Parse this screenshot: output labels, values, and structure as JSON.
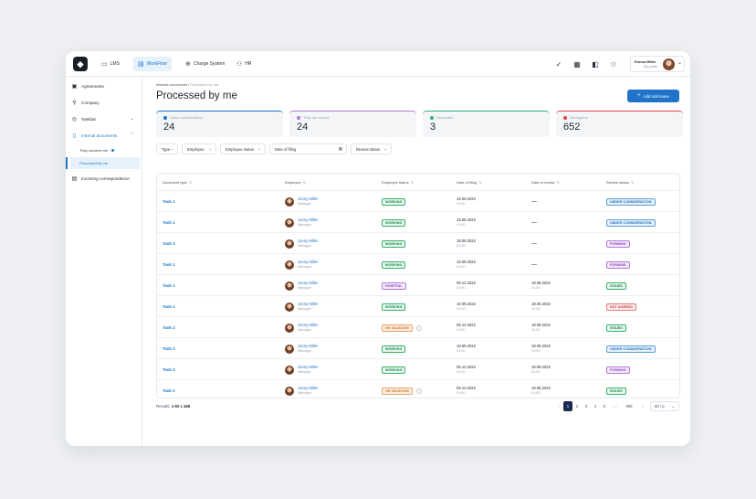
{
  "topbar": {
    "tabs": [
      {
        "label": "LMS",
        "icon": "monitor-icon"
      },
      {
        "label": "WorkFlow",
        "icon": "workflow-icon"
      },
      {
        "label": "Charge System",
        "icon": "charge-icon"
      },
      {
        "label": "HR",
        "icon": "people-icon"
      }
    ],
    "user": {
      "name": "Emma Miller",
      "subtitle": "My profile"
    }
  },
  "sidebar": {
    "items": [
      {
        "label": "Agreements",
        "icon": "agreement-icon"
      },
      {
        "label": "Company",
        "icon": "company-icon"
      },
      {
        "label": "Taskbar",
        "icon": "taskbar-icon"
      },
      {
        "label": "Internal documents",
        "icon": "document-icon"
      },
      {
        "label": "Incoming correspondence",
        "icon": "inbox-icon"
      }
    ],
    "subitems": [
      {
        "label": "They concern me"
      },
      {
        "label": "Processed by me"
      }
    ]
  },
  "breadcrumb": {
    "parent": "Internal documents",
    "separator": "/",
    "current": "Processed by me"
  },
  "page_title": "Processed by me",
  "add_button_label": "Add sick leave",
  "stats": [
    {
      "label": "Under consideration",
      "value": "24",
      "color": "#1f74c9"
    },
    {
      "label": "They are issued",
      "value": "24",
      "color": "#b27ad9"
    },
    {
      "label": "Decorated",
      "value": "3",
      "color": "#2fb37a"
    },
    {
      "label": "Not agreed",
      "value": "652",
      "color": "#e0464b"
    }
  ],
  "filters": [
    {
      "label": "Type"
    },
    {
      "label": "Employee"
    },
    {
      "label": "Employee status"
    },
    {
      "label": "Date of filing"
    },
    {
      "label": "Review status"
    }
  ],
  "table": {
    "headers": [
      "Document type",
      "Employee",
      "Employee status",
      "Date of filing",
      "Date of review",
      "Review status"
    ],
    "rows": [
      {
        "doc": "Task 1",
        "name": "Jonny Miller",
        "role": "Manager",
        "status": "WORKING",
        "status_kind": "working",
        "filed_date": "18.09.2022",
        "filed_time": "01:00",
        "review_date": "—",
        "review_time": "",
        "review": "UNDER CONSIDERATION",
        "review_kind": "consider"
      },
      {
        "doc": "Task 1",
        "name": "Jonny Miller",
        "role": "Manager",
        "status": "WORKING",
        "status_kind": "working",
        "filed_date": "18.09.2022",
        "filed_time": "01:00",
        "review_date": "—",
        "review_time": "",
        "review": "UNDER CONSIDERATION",
        "review_kind": "consider"
      },
      {
        "doc": "Task 3",
        "name": "Jonny Miller",
        "role": "Manager",
        "status": "WORKING",
        "status_kind": "working",
        "filed_date": "18.09.2022",
        "filed_time": "01:00",
        "review_date": "—",
        "review_time": "",
        "review": "FORMING",
        "review_kind": "forming"
      },
      {
        "doc": "Task 1",
        "name": "Jonny Miller",
        "role": "Manager",
        "status": "WORKING",
        "status_kind": "working",
        "filed_date": "18.09.2022",
        "filed_time": "01:00",
        "review_date": "—",
        "review_time": "",
        "review": "FORMING",
        "review_kind": "forming"
      },
      {
        "doc": "Task 1",
        "name": "Jonny Miller",
        "role": "Manager",
        "status": "HOSPITAL",
        "status_kind": "hospital",
        "filed_date": "09.12.2022",
        "filed_time": "01:00",
        "review_date": "18.08.2022",
        "review_time": "01:00",
        "review": "ISSUED",
        "review_kind": "issued"
      },
      {
        "doc": "Task 1",
        "name": "Jonny Miller",
        "role": "Manager",
        "status": "WORKING",
        "status_kind": "working",
        "filed_date": "18.09.2022",
        "filed_time": "01:00",
        "review_date": "18.08.2022",
        "review_time": "01:00",
        "review": "NOT AGREED",
        "review_kind": "notagreed"
      },
      {
        "doc": "Task 2",
        "name": "Jonny Miller",
        "role": "Manager",
        "status": "ON VACATION",
        "status_kind": "vacation",
        "filed_date": "09.12.2022",
        "filed_time": "01:00",
        "review_date": "18.08.2022",
        "review_time": "01:00",
        "review": "ISSUED",
        "review_kind": "issued"
      },
      {
        "doc": "Task 3",
        "name": "Jonny Miller",
        "role": "Manager",
        "status": "WORKING",
        "status_kind": "working",
        "filed_date": "18.09.2022",
        "filed_time": "01:00",
        "review_date": "18.08.2022",
        "review_time": "01:00",
        "review": "UNDER CONSIDERATION",
        "review_kind": "consider"
      },
      {
        "doc": "Task 3",
        "name": "Jonny Miller",
        "role": "Manager",
        "status": "WORKING",
        "status_kind": "working",
        "filed_date": "09.12.2022",
        "filed_time": "01:00",
        "review_date": "18.08.2022",
        "review_time": "01:00",
        "review": "FORMING",
        "review_kind": "forming"
      },
      {
        "doc": "Task 2",
        "name": "Jonny Miller",
        "role": "Manager",
        "status": "ON VACATION",
        "status_kind": "vacation",
        "filed_date": "09.12.2022",
        "filed_time": "01:00",
        "review_date": "18.08.2022",
        "review_time": "01:00",
        "review": "ISSUED",
        "review_kind": "issued"
      }
    ]
  },
  "results": {
    "label": "Results:",
    "range": "1-50 з 168"
  },
  "pagination": {
    "pages": [
      "1",
      "2",
      "3",
      "4",
      "5",
      "...",
      "999"
    ],
    "current": "1",
    "per_page": "50 / p."
  }
}
